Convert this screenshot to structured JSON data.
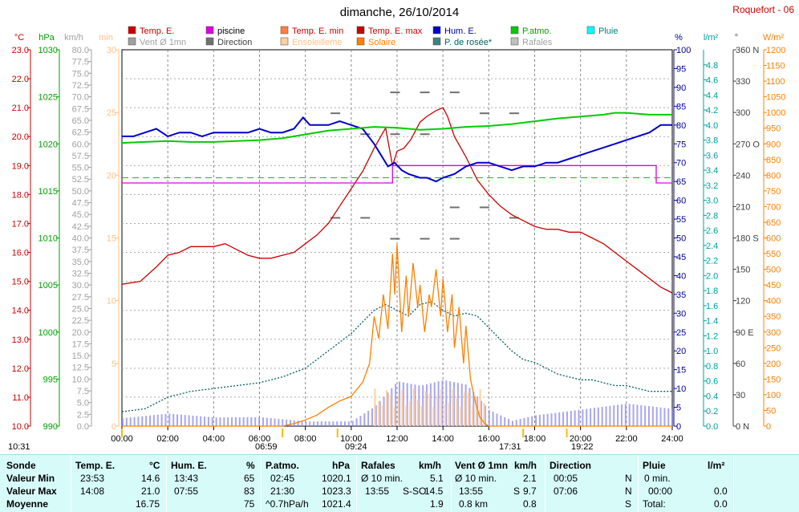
{
  "title": "dimanche, 26/10/2014",
  "station": "Roquefort - 06",
  "legend": [
    {
      "label": "Temp. E.",
      "color": "#cc0000",
      "box": "#cc0000"
    },
    {
      "label": "piscine",
      "color": "#000000",
      "box": "#e000e0"
    },
    {
      "label": "Temp. E. min",
      "color": "#cc0000",
      "box": "#ff7f3f"
    },
    {
      "label": "Temp. E. max",
      "color": "#cc0000",
      "box": "#cc0000"
    },
    {
      "label": "Hum. E.",
      "color": "#000099",
      "box": "#0000cc"
    },
    {
      "label": "P.atmo.",
      "color": "#00a000",
      "box": "#00cc00"
    },
    {
      "label": "Pluie",
      "color": "#008080",
      "box": "#00ffff"
    },
    {
      "label": "Vent Ø 1mn",
      "color": "#a0a0a0",
      "box": "#a0a0a0"
    },
    {
      "label": "Direction",
      "color": "#404040",
      "box": "#707070"
    },
    {
      "label": "Ensoleilleme",
      "color": "#ffc080",
      "box": "#ffd0a0"
    },
    {
      "label": "Solaire",
      "color": "#ff7f00",
      "box": "#ff8000"
    },
    {
      "label": "P. de rosée*",
      "color": "#006060",
      "box": "#408080"
    },
    {
      "label": "Rafales",
      "color": "#a0a0a0",
      "box": "#c0c0c0"
    }
  ],
  "axis_titles": {
    "celsius": "°C",
    "hpa": "hPa",
    "kmh": "km/h",
    "min": "min",
    "percent": "%",
    "lm2": "l/m²",
    "deg": "°",
    "wm2": "W/m²"
  },
  "sun": {
    "rise_time": "06:59",
    "set_time": "17:31",
    "noon_time": "09:24",
    "other_time": "19:22",
    "day_start": "10:31"
  },
  "chart_data": {
    "type": "line",
    "title": "dimanche, 26/10/2014",
    "x_ticks": [
      "00:00",
      "02:00",
      "04:00",
      "06:00",
      "08:00",
      "10:00",
      "12:00",
      "14:00",
      "16:00",
      "18:00",
      "20:00",
      "22:00",
      "24:00"
    ],
    "xlim": [
      0,
      24
    ],
    "axes": {
      "temp_c": {
        "range": [
          10,
          23
        ],
        "ticks": [
          "10.0",
          "11.0",
          "12.0",
          "13.0",
          "14.0",
          "15.0",
          "16.0",
          "17.0",
          "18.0",
          "19.0",
          "20.0",
          "21.0",
          "22.0",
          "23.0"
        ]
      },
      "pressure_hpa": {
        "range": [
          990,
          1030
        ],
        "ticks": [
          "990",
          "995",
          "1000",
          "1005",
          "1010",
          "1015",
          "1020",
          "1025",
          "1030"
        ]
      },
      "wind_kmh": {
        "range": [
          0,
          80
        ],
        "ticks": [
          "0.0",
          "2.5",
          "5.0",
          "7.5",
          "10.0",
          "12.5",
          "15.0",
          "17.5",
          "20.0",
          "22.5",
          "25.0",
          "27.5",
          "30.0",
          "32.5",
          "35.0",
          "37.5",
          "40.0",
          "42.5",
          "45.0",
          "47.5",
          "50.0",
          "52.5",
          "55.0",
          "57.5",
          "60.0",
          "62.5",
          "65.0",
          "67.5",
          "70.0",
          "72.5",
          "75.0",
          "77.5",
          "80.0"
        ]
      },
      "sun_min": {
        "range": [
          0,
          30
        ],
        "ticks": [
          "0",
          "5",
          "10",
          "15",
          "20",
          "25",
          "30"
        ]
      },
      "humidity_pct": {
        "range": [
          0,
          100
        ],
        "ticks": [
          "0",
          "5",
          "10",
          "15",
          "20",
          "25",
          "30",
          "35",
          "40",
          "45",
          "50",
          "55",
          "60",
          "65",
          "70",
          "75",
          "80",
          "85",
          "90",
          "95",
          "100"
        ]
      },
      "rain_lm2": {
        "range": [
          0,
          5
        ],
        "ticks": [
          "0.0",
          "0.2",
          "0.4",
          "0.6",
          "0.8",
          "1.0",
          "1.2",
          "1.4",
          "1.6",
          "1.8",
          "2.0",
          "2.2",
          "2.4",
          "2.6",
          "2.8",
          "3.0",
          "3.2",
          "3.4",
          "3.6",
          "3.8",
          "4.0",
          "4.2",
          "4.4",
          "4.6",
          "4.8"
        ]
      },
      "direction_deg": {
        "range": [
          0,
          360
        ],
        "ticks": [
          "0 N",
          "30",
          "60",
          "90 E",
          "120",
          "150",
          "180 S",
          "210",
          "240",
          "270 O",
          "300",
          "330",
          "360 N"
        ]
      },
      "solar_wm2": {
        "range": [
          0,
          1200
        ],
        "ticks": [
          "0",
          "50",
          "100",
          "150",
          "200",
          "250",
          "300",
          "350",
          "400",
          "450",
          "500",
          "550",
          "600",
          "650",
          "700",
          "750",
          "800",
          "850",
          "900",
          "950",
          "1000",
          "1050",
          "1100",
          "1150",
          "1200"
        ]
      }
    },
    "series": [
      {
        "name": "Temp. E.",
        "axis": "temp_c",
        "color": "#cc0000",
        "x": [
          0,
          0.8,
          1.5,
          2,
          2.5,
          3,
          4,
          4.5,
          5,
          5.5,
          6,
          6.5,
          7,
          7.5,
          8,
          8.5,
          9,
          9.5,
          10,
          10.5,
          11,
          11.5,
          11.8,
          12,
          12.3,
          12.6,
          13,
          13.3,
          13.7,
          14,
          14.2,
          14.5,
          15,
          15.5,
          16,
          16.5,
          17,
          17.5,
          18,
          18.5,
          19,
          19.5,
          20,
          20.5,
          21,
          21.5,
          22,
          22.5,
          23,
          23.5,
          24
        ],
        "y": [
          14.9,
          15.0,
          15.5,
          15.9,
          16.0,
          16.2,
          16.2,
          16.3,
          16.1,
          15.9,
          15.8,
          15.8,
          15.9,
          16.0,
          16.3,
          16.6,
          17.0,
          17.6,
          18.2,
          18.8,
          19.6,
          20.3,
          19.0,
          19.5,
          19.6,
          19.9,
          20.5,
          20.7,
          20.9,
          21.0,
          20.7,
          20.0,
          19.3,
          18.5,
          18.0,
          17.6,
          17.3,
          17.1,
          16.9,
          16.8,
          16.8,
          16.7,
          16.7,
          16.5,
          16.3,
          16.0,
          15.7,
          15.4,
          15.1,
          14.8,
          14.6
        ]
      },
      {
        "name": "piscine",
        "axis": "temp_c",
        "color": "#e000e0",
        "x": [
          0,
          11.8,
          11.8,
          23.3,
          23.3,
          23.5,
          23.5,
          24
        ],
        "y": [
          18.4,
          18.4,
          19.0,
          19.0,
          18.4,
          18.4,
          18.4,
          18.4
        ]
      },
      {
        "name": "Hum. E.",
        "axis": "humidity_pct",
        "color": "#0000cc",
        "x": [
          0,
          0.5,
          1,
          1.5,
          2,
          2.5,
          3,
          3.5,
          4,
          4.5,
          5,
          5.5,
          6,
          6.5,
          7,
          7.5,
          7.9,
          8.2,
          8.5,
          9,
          9.5,
          10,
          10.5,
          11,
          11.3,
          11.6,
          11.9,
          12.2,
          12.5,
          13,
          13.3,
          13.7,
          14,
          14.5,
          15,
          15.5,
          16,
          16.5,
          17,
          17.5,
          18,
          18.5,
          19,
          19.5,
          20,
          20.5,
          21,
          21.5,
          22,
          22.5,
          23,
          23.5,
          24
        ],
        "y": [
          77,
          77,
          78,
          79,
          77,
          78,
          78,
          77,
          78,
          78,
          78,
          78,
          79,
          78,
          78,
          79,
          82,
          80,
          80,
          80,
          81,
          80,
          79,
          75,
          72,
          69,
          70,
          68,
          67,
          66,
          66,
          65,
          66,
          67,
          69,
          70,
          70,
          69,
          68,
          69,
          69,
          70,
          70,
          71,
          72,
          73,
          74,
          75,
          76,
          77,
          78,
          80,
          80
        ]
      },
      {
        "name": "P.atmo.",
        "axis": "pressure_hpa",
        "color": "#00cc00",
        "x": [
          0,
          1,
          2,
          3,
          4,
          5,
          6,
          7,
          8,
          9,
          10,
          11,
          12,
          13,
          14,
          15,
          16,
          17,
          18,
          19,
          20,
          21,
          21.5,
          22,
          23,
          24
        ],
        "y": [
          1020.1,
          1020.2,
          1020.3,
          1020.2,
          1020.2,
          1020.3,
          1020.4,
          1020.6,
          1021.0,
          1021.4,
          1021.6,
          1021.8,
          1021.7,
          1021.5,
          1021.6,
          1021.8,
          1021.9,
          1022.1,
          1022.4,
          1022.7,
          1022.9,
          1023.1,
          1023.3,
          1023.3,
          1023.1,
          1023.1
        ]
      },
      {
        "name": "P. de rosée*",
        "axis": "temp_c",
        "color": "#006060",
        "x": [
          0,
          1,
          2,
          3,
          4,
          5,
          6,
          7,
          8,
          9,
          10,
          10.5,
          11,
          11.5,
          12,
          12.5,
          13,
          13.5,
          14,
          14.5,
          15,
          15.5,
          16,
          16.5,
          17,
          17.5,
          18,
          18.5,
          19,
          19.5,
          20,
          20.5,
          21,
          21.5,
          22,
          22.5,
          23,
          23.5,
          24
        ],
        "y": [
          10.5,
          10.6,
          11.0,
          11.2,
          11.3,
          11.4,
          11.5,
          11.7,
          12.0,
          12.6,
          13.2,
          13.6,
          14.0,
          14.2,
          14.0,
          13.8,
          14.2,
          14.3,
          14.0,
          13.8,
          13.9,
          13.8,
          13.4,
          13.0,
          12.6,
          12.3,
          12.2,
          12.0,
          11.8,
          11.7,
          11.6,
          11.6,
          11.5,
          11.4,
          11.4,
          11.3,
          11.2,
          11.2,
          11.2
        ]
      },
      {
        "name": "Solaire",
        "axis": "solar_wm2",
        "color": "#ff7f00",
        "x": [
          0,
          7,
          7.5,
          8,
          8.5,
          9,
          9.5,
          10,
          10.5,
          10.8,
          11,
          11.2,
          11.4,
          11.6,
          11.8,
          11.9,
          12,
          12.2,
          12.4,
          12.5,
          12.7,
          12.9,
          13,
          13.2,
          13.4,
          13.5,
          13.7,
          13.9,
          14,
          14.2,
          14.4,
          14.5,
          14.7,
          14.9,
          15,
          15.2,
          15.4,
          15.6,
          15.8,
          16,
          17,
          24
        ],
        "y": [
          0,
          0,
          8,
          20,
          35,
          60,
          80,
          95,
          140,
          200,
          350,
          280,
          420,
          310,
          550,
          420,
          580,
          300,
          480,
          350,
          520,
          380,
          450,
          300,
          420,
          380,
          500,
          350,
          470,
          300,
          420,
          250,
          380,
          200,
          320,
          150,
          80,
          30,
          10,
          0,
          0,
          0
        ]
      },
      {
        "name": "Rafales",
        "axis": "wind_kmh",
        "color": "#8888ee",
        "x": [
          0,
          2,
          4,
          6,
          8,
          10,
          11,
          12,
          13,
          14,
          15,
          16,
          17,
          18,
          20,
          22,
          24
        ],
        "y": [
          2,
          3,
          2,
          2,
          1,
          1,
          4,
          9,
          8,
          9,
          8,
          3,
          1,
          2,
          3,
          4,
          3
        ]
      }
    ],
    "direction_marks_deg": [
      180,
      200,
      210,
      280,
      300,
      320
    ],
    "legend_position": "top"
  },
  "table": {
    "headers": {
      "sonde": "Sonde",
      "temp": "Temp. E.",
      "temp_u": "°C",
      "hum": "Hum. E.",
      "hum_u": "%",
      "patmo": "P.atmo.",
      "patmo_u": "hPa",
      "raf": "Rafales",
      "raf_u": "km/h",
      "vent": "Vent Ø 1mn",
      "vent_u": "km/h",
      "dir": "Direction",
      "pluie": "Pluie",
      "pluie_u": "l/m²"
    },
    "rows": [
      {
        "label": "Valeur Min",
        "temp_t": "23:53",
        "temp_v": "14.6",
        "hum_t": "13:43",
        "hum_v": "65",
        "p_t": "02:45",
        "p_v": "1020.1",
        "r_l": "Ø 10 min.",
        "r_v": "5.1",
        "v_l": "Ø 10 min.",
        "v_v": "2.1",
        "d_t": "00:05",
        "d_v": "N",
        "pl_l": "0 min.",
        "pl_v": ""
      },
      {
        "label": "Valeur Max",
        "temp_t": "14:08",
        "temp_v": "21.0",
        "hum_t": "07:55",
        "hum_v": "83",
        "p_t": "21:30",
        "p_v": "1023.3",
        "r_l": "13:55",
        "r_d": "S-SO",
        "r_v": "14.5",
        "v_l": "13:55",
        "v_d": "S",
        "v_v": "9.7",
        "d_t": "07:06",
        "d_v": "N",
        "pl_l": "00:00",
        "pl_v": "0.0"
      },
      {
        "label": "Moyenne",
        "temp_t": "",
        "temp_v": "16.75",
        "hum_t": "",
        "hum_v": "75",
        "p_t": "^0.7hPa/h",
        "p_v": "1021.4",
        "r_l": "",
        "r_v": "1.9",
        "v_l": "0.8 km",
        "v_v": "0.8",
        "d_t": "",
        "d_v": "S",
        "pl_l": "Total:",
        "pl_v": "0.0"
      }
    ]
  }
}
